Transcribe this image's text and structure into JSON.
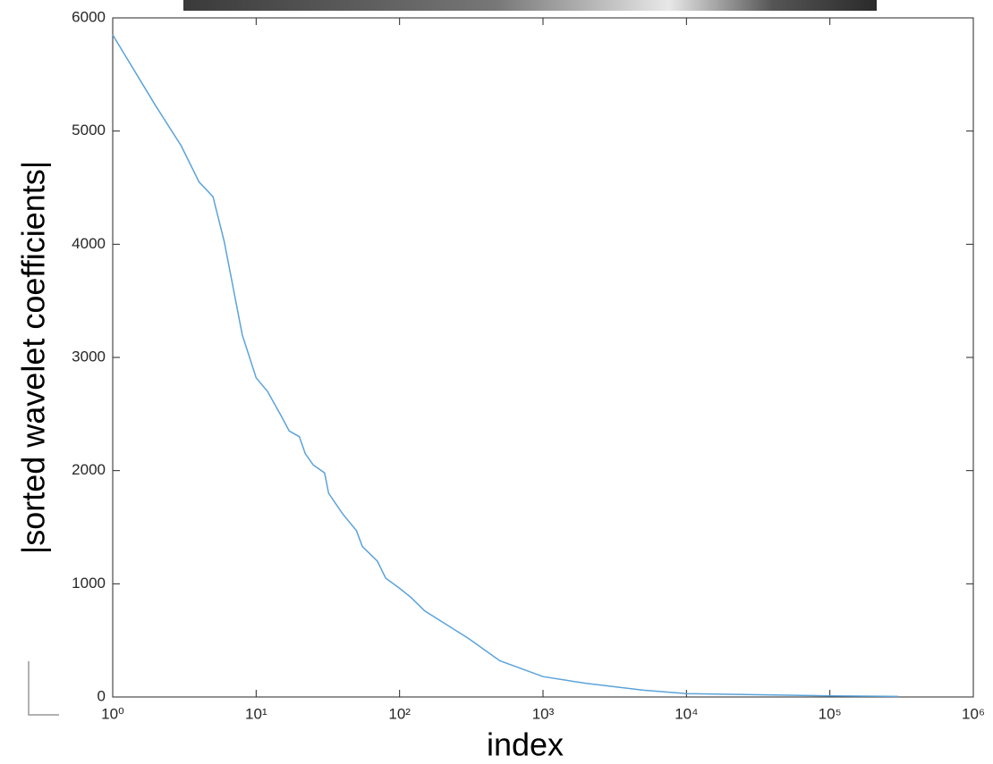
{
  "chart_data": {
    "type": "line",
    "x_label": "index",
    "y_label": "|sorted wavelet coefficients|",
    "x_scale": "log",
    "color": "#5ba3d9",
    "x": [
      1,
      2,
      3,
      4,
      5,
      6,
      8,
      10,
      12,
      15,
      17,
      20,
      22,
      25,
      30,
      32,
      40,
      50,
      55,
      70,
      80,
      100,
      120,
      150,
      200,
      300,
      500,
      1000,
      2000,
      5000,
      10000,
      100000,
      300000
    ],
    "values": [
      5850,
      5220,
      4870,
      4550,
      4420,
      4020,
      3200,
      2820,
      2700,
      2480,
      2350,
      2300,
      2150,
      2050,
      1980,
      1800,
      1620,
      1470,
      1330,
      1200,
      1050,
      960,
      880,
      760,
      660,
      520,
      320,
      180,
      120,
      60,
      30,
      10,
      5
    ],
    "xlim": [
      1,
      1000000
    ],
    "ylim": [
      0,
      6000
    ],
    "xticks": [
      {
        "value": 1,
        "label": "10⁰"
      },
      {
        "value": 10,
        "label": "10¹"
      },
      {
        "value": 100,
        "label": "10²"
      },
      {
        "value": 1000,
        "label": "10³"
      },
      {
        "value": 10000,
        "label": "10⁴"
      },
      {
        "value": 100000,
        "label": "10⁵"
      },
      {
        "value": 1000000,
        "label": "10⁶"
      }
    ],
    "yticks": [
      0,
      1000,
      2000,
      3000,
      4000,
      5000,
      6000
    ],
    "grid": false
  }
}
